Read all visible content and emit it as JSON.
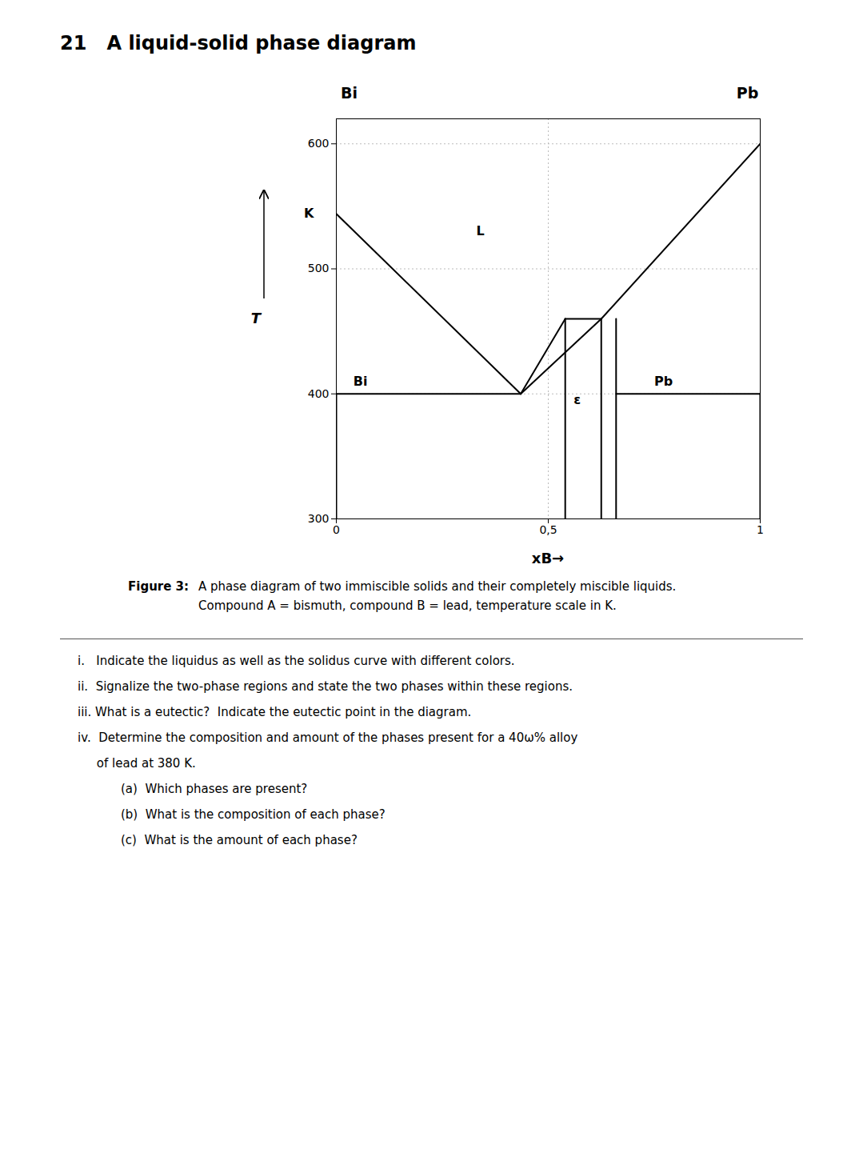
{
  "chart_data": {
    "type": "line",
    "title": "21   A liquid-solid phase diagram",
    "xlabel": "xB→",
    "ylabel": "T",
    "xlim": [
      0,
      1
    ],
    "ylim": [
      300,
      620
    ],
    "xticks": [
      0,
      {
        "value": 0.5,
        "label": "0,5"
      },
      1
    ],
    "yticks": [
      300,
      400,
      500,
      600
    ],
    "grid": true,
    "color": "#000000",
    "series": [
      {
        "x": [
          0,
          0.435
        ],
        "values": [
          544,
          400
        ]
      },
      {
        "x": [
          0.435,
          0.625
        ],
        "values": [
          400,
          460
        ]
      },
      {
        "x": [
          0.625,
          1.0
        ],
        "values": [
          460,
          600
        ]
      },
      {
        "x": [
          0.435,
          0.54
        ],
        "values": [
          400,
          460
        ]
      },
      {
        "x": [
          0.54,
          0.625
        ],
        "values": [
          460,
          460
        ]
      },
      {
        "x": [
          0.66,
          0.66
        ],
        "values": [
          460,
          300
        ]
      },
      {
        "x": [
          0.54,
          0.54
        ],
        "values": [
          460,
          300
        ]
      },
      {
        "x": [
          0.625,
          0.625
        ],
        "values": [
          460,
          300
        ]
      },
      {
        "x": [
          0,
          0.435
        ],
        "values": [
          400,
          400
        ]
      },
      {
        "x": [
          0.66,
          1.0
        ],
        "values": [
          400,
          400
        ]
      },
      {
        "x": [
          0,
          0
        ],
        "values": [
          300,
          400
        ]
      },
      {
        "x": [
          1.0,
          1.0
        ],
        "values": [
          300,
          400
        ]
      }
    ],
    "annotations": [
      {
        "text": "K",
        "x": 0,
        "y": 544
      },
      {
        "text": "L",
        "x": 0.33,
        "y": 530
      },
      {
        "text": "Bi",
        "x": 0.04,
        "y": 410
      },
      {
        "text": "Pb",
        "x": 0.75,
        "y": 410
      },
      {
        "text": "ε",
        "x": 0.56,
        "y": 395
      },
      {
        "text": "Bi"
      },
      {
        "text": "Pb"
      }
    ],
    "caption_label": "Figure 3:",
    "caption": [
      "A phase diagram of two immiscible solids and their completely miscible liquids.",
      "Compound A = bismuth, compound B = lead, temperature scale in K."
    ],
    "questions": [
      "i.   Indicate the liquidus as well as the solidus curve with different colors.",
      "ii.  Signalize the two-phase regions and state the two phases within these regions.",
      "iii. What is a eutectic?  Indicate the eutectic point in the diagram.",
      "iv.  Determine the composition and amount of the phases present for a 40ω% alloy",
      "     of lead at 380 K.",
      "(a)  Which phases are present?",
      "(b)  What is the composition of each phase?",
      "(c)  What is the amount of each phase?"
    ]
  }
}
